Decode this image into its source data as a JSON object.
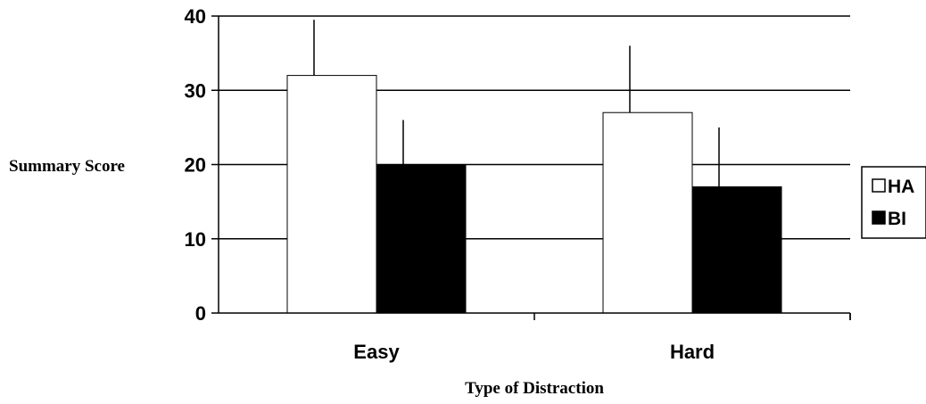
{
  "chart_data": {
    "type": "bar",
    "title": "",
    "xlabel": "Type of Distraction",
    "ylabel": "Summary Score",
    "categories": [
      "Easy",
      "Hard"
    ],
    "series": [
      {
        "name": "HA",
        "values": [
          32,
          27
        ],
        "error_upper": [
          7.5,
          9
        ],
        "color": "#ffffff"
      },
      {
        "name": "BI",
        "values": [
          20,
          17
        ],
        "error_upper": [
          6,
          8
        ],
        "color": "#000000"
      }
    ],
    "ylim": [
      0,
      40
    ],
    "yticks": [
      0,
      10,
      20,
      30,
      40
    ],
    "grid": true,
    "legend_position": "right"
  }
}
